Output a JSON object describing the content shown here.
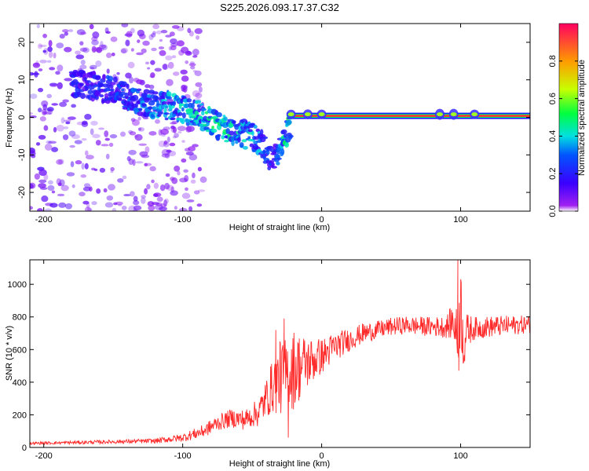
{
  "title": "S225.2026.093.17.37.C32",
  "chart_data": [
    {
      "type": "heatmap",
      "name": "spectrogram",
      "xlabel": "Height of straight line (km)",
      "ylabel": "Frequency (Hz)",
      "xlim": [
        -210,
        150
      ],
      "ylim": [
        -25,
        25
      ],
      "xticks": [
        -200,
        -100,
        0,
        100
      ],
      "yticks": [
        -20,
        -10,
        0,
        10,
        20
      ],
      "colorbar": {
        "label": "Normalized spectral amplitude",
        "range": [
          0,
          1
        ],
        "ticks": [
          0.0,
          0.2,
          0.4,
          0.6,
          0.8
        ]
      },
      "description_points": [
        {
          "x": -170,
          "y": 9,
          "amp": 0.2
        },
        {
          "x": -150,
          "y": 7,
          "amp": 0.25
        },
        {
          "x": -130,
          "y": 4,
          "amp": 0.3
        },
        {
          "x": -110,
          "y": 3,
          "amp": 0.35
        },
        {
          "x": -90,
          "y": 1,
          "amp": 0.4
        },
        {
          "x": -75,
          "y": -2,
          "amp": 0.45
        },
        {
          "x": -60,
          "y": -4,
          "amp": 0.4
        },
        {
          "x": -45,
          "y": -6,
          "amp": 0.35
        },
        {
          "x": -35,
          "y": -12,
          "amp": 0.2
        },
        {
          "x": -20,
          "y": 0,
          "amp": 0.6
        },
        {
          "x": 0,
          "y": 1,
          "amp": 0.8
        },
        {
          "x": 50,
          "y": 0,
          "amp": 0.9
        },
        {
          "x": 90,
          "y": 0,
          "amp": 0.85
        },
        {
          "x": 120,
          "y": 0,
          "amp": 0.95
        },
        {
          "x": 150,
          "y": 0,
          "amp": 0.95
        }
      ]
    },
    {
      "type": "line",
      "name": "snr",
      "xlabel": "Height of straight line (km)",
      "ylabel": "SNR (10 * v/v)",
      "xlim": [
        -210,
        150
      ],
      "ylim": [
        0,
        1150
      ],
      "xticks": [
        -200,
        -100,
        0,
        100
      ],
      "yticks": [
        0,
        200,
        400,
        600,
        800,
        1000
      ],
      "color": "#ff2b2b",
      "envelope": {
        "x": [
          -210,
          -180,
          -150,
          -120,
          -100,
          -85,
          -75,
          -65,
          -55,
          -45,
          -40,
          -35,
          -30,
          -25,
          -20,
          -15,
          -10,
          -5,
          0,
          10,
          20,
          30,
          40,
          50,
          60,
          70,
          80,
          90,
          95,
          98,
          100,
          102,
          105,
          110,
          120,
          130,
          140,
          150
        ],
        "y": [
          25,
          30,
          35,
          40,
          60,
          100,
          150,
          180,
          170,
          220,
          300,
          380,
          420,
          450,
          480,
          500,
          520,
          540,
          560,
          620,
          660,
          700,
          720,
          740,
          750,
          745,
          740,
          740,
          780,
          640,
          900,
          640,
          720,
          730,
          740,
          745,
          750,
          755
        ]
      },
      "noise": {
        "x": [
          -210,
          -150,
          -120,
          -100,
          -80,
          -60,
          -50,
          -40,
          -30,
          -20,
          -10,
          0,
          20,
          40,
          60,
          80,
          90,
          95,
          100,
          105,
          110,
          150
        ],
        "amp": [
          8,
          12,
          15,
          25,
          45,
          60,
          70,
          120,
          220,
          250,
          160,
          110,
          70,
          55,
          55,
          60,
          70,
          120,
          250,
          100,
          70,
          55
        ]
      },
      "spikes": [
        {
          "x": 98,
          "y": 1150
        },
        {
          "x": 98.7,
          "y": 470
        },
        {
          "x": -27,
          "y": 790
        },
        {
          "x": -30,
          "y": 650
        },
        {
          "x": -33,
          "y": 720
        },
        {
          "x": -24,
          "y": 60
        }
      ]
    }
  ]
}
